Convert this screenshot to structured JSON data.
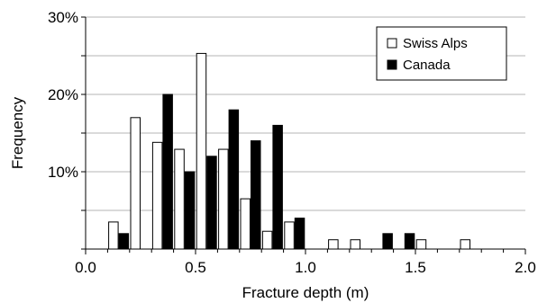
{
  "chart_data": {
    "type": "bar",
    "title": "",
    "xlabel": "Fracture depth (m)",
    "ylabel": "Frequency",
    "xlim": [
      0,
      2.0
    ],
    "ylim": [
      0,
      30
    ],
    "grid": true,
    "legend_position": "top-right",
    "x_ticks": [
      {
        "value": 0.0,
        "label": "0.0"
      },
      {
        "value": 0.5,
        "label": "0.5"
      },
      {
        "value": 1.0,
        "label": "1.0"
      },
      {
        "value": 1.5,
        "label": "1.5"
      },
      {
        "value": 2.0,
        "label": "2.0"
      }
    ],
    "y_ticks": [
      {
        "value": 10,
        "label": "10%"
      },
      {
        "value": 20,
        "label": "20%"
      },
      {
        "value": 30,
        "label": "30%"
      }
    ],
    "bin_centers": [
      0.15,
      0.25,
      0.35,
      0.45,
      0.55,
      0.65,
      0.75,
      0.85,
      0.95,
      1.05,
      1.15,
      1.25,
      1.35,
      1.45,
      1.55,
      1.65,
      1.75,
      1.85
    ],
    "series": [
      {
        "name": "Swiss Alps",
        "fill": "#ffffff",
        "values": [
          3.5,
          17,
          13.8,
          12.9,
          25.3,
          12.9,
          6.5,
          2.3,
          3.5,
          0,
          1.2,
          1.2,
          0,
          0,
          1.2,
          0,
          1.2,
          0
        ]
      },
      {
        "name": "Canada",
        "fill": "#000000",
        "values": [
          2,
          0,
          20,
          10,
          12,
          18,
          14,
          16,
          4,
          0,
          0,
          0,
          2,
          2,
          0,
          0,
          0,
          0
        ]
      }
    ]
  }
}
